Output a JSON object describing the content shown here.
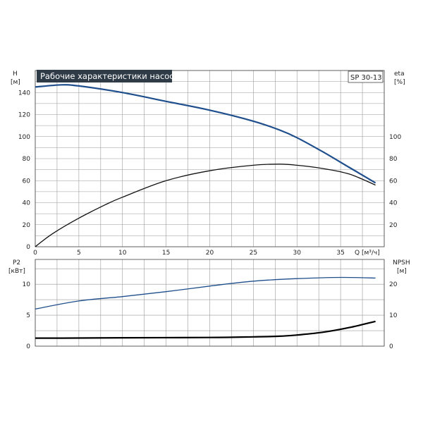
{
  "title": "Рабочие характеристики насоса",
  "model": "SP 30-13",
  "colors": {
    "head": "#1f4e8c",
    "eta": "#111111",
    "p2": "#1f4e8c",
    "npsh": "#000000",
    "title_bg": "#2f3b46"
  },
  "chart_data": [
    {
      "type": "line",
      "name": "top-panel",
      "xlabel": "Q [м³/ч]",
      "xlim": [
        0,
        40
      ],
      "xticks": [
        "0",
        "5",
        "10",
        "15",
        "20",
        "25",
        "30",
        "35"
      ],
      "y_left": {
        "label_line1": "H",
        "label_line2": "[м]",
        "ylim": [
          0,
          160
        ],
        "ticks": [
          "0",
          "20",
          "40",
          "60",
          "80",
          "100",
          "120",
          "140"
        ]
      },
      "y_right": {
        "label_line1": "eta",
        "label_line2": "[%]",
        "ylim": [
          0,
          160
        ],
        "ticks": [
          "20",
          "40",
          "60",
          "80",
          "100"
        ]
      },
      "grid": true,
      "series": [
        {
          "key": "head",
          "x": [
            0,
            3,
            5,
            10,
            15,
            20,
            25,
            28,
            30,
            33,
            36,
            39
          ],
          "y": [
            145,
            147,
            146,
            140,
            132,
            124,
            114,
            106,
            99,
            86,
            72,
            58
          ]
        },
        {
          "key": "eta",
          "x": [
            0,
            2,
            5,
            8,
            10,
            15,
            20,
            25,
            28,
            30,
            33,
            36,
            39
          ],
          "y": [
            0,
            12,
            26,
            38,
            45,
            60,
            69,
            74,
            75,
            74,
            71,
            66,
            56
          ]
        }
      ]
    },
    {
      "type": "line",
      "name": "bottom-panel",
      "xlim": [
        0,
        40
      ],
      "y_left": {
        "label_line1": "P2",
        "label_line2": "[кВт]",
        "ylim": [
          0,
          14
        ],
        "ticks": [
          "0",
          "5",
          "10"
        ]
      },
      "y_right": {
        "label_line1": "NPSH",
        "label_line2": "[м]",
        "ylim": [
          0,
          28
        ],
        "ticks": [
          "0",
          "10",
          "20"
        ]
      },
      "grid": true,
      "series": [
        {
          "key": "p2",
          "axis": "left",
          "x": [
            0,
            5,
            10,
            15,
            20,
            25,
            30,
            35,
            39
          ],
          "y": [
            6.0,
            7.3,
            8.0,
            8.8,
            9.7,
            10.5,
            10.9,
            11.1,
            11.0
          ]
        },
        {
          "key": "npsh",
          "axis": "right",
          "x": [
            0,
            3,
            10,
            20,
            25,
            28,
            30,
            33,
            36,
            39
          ],
          "y": [
            2.6,
            2.6,
            2.7,
            2.8,
            3.0,
            3.2,
            3.6,
            4.5,
            6.0,
            8.0
          ]
        }
      ]
    }
  ]
}
